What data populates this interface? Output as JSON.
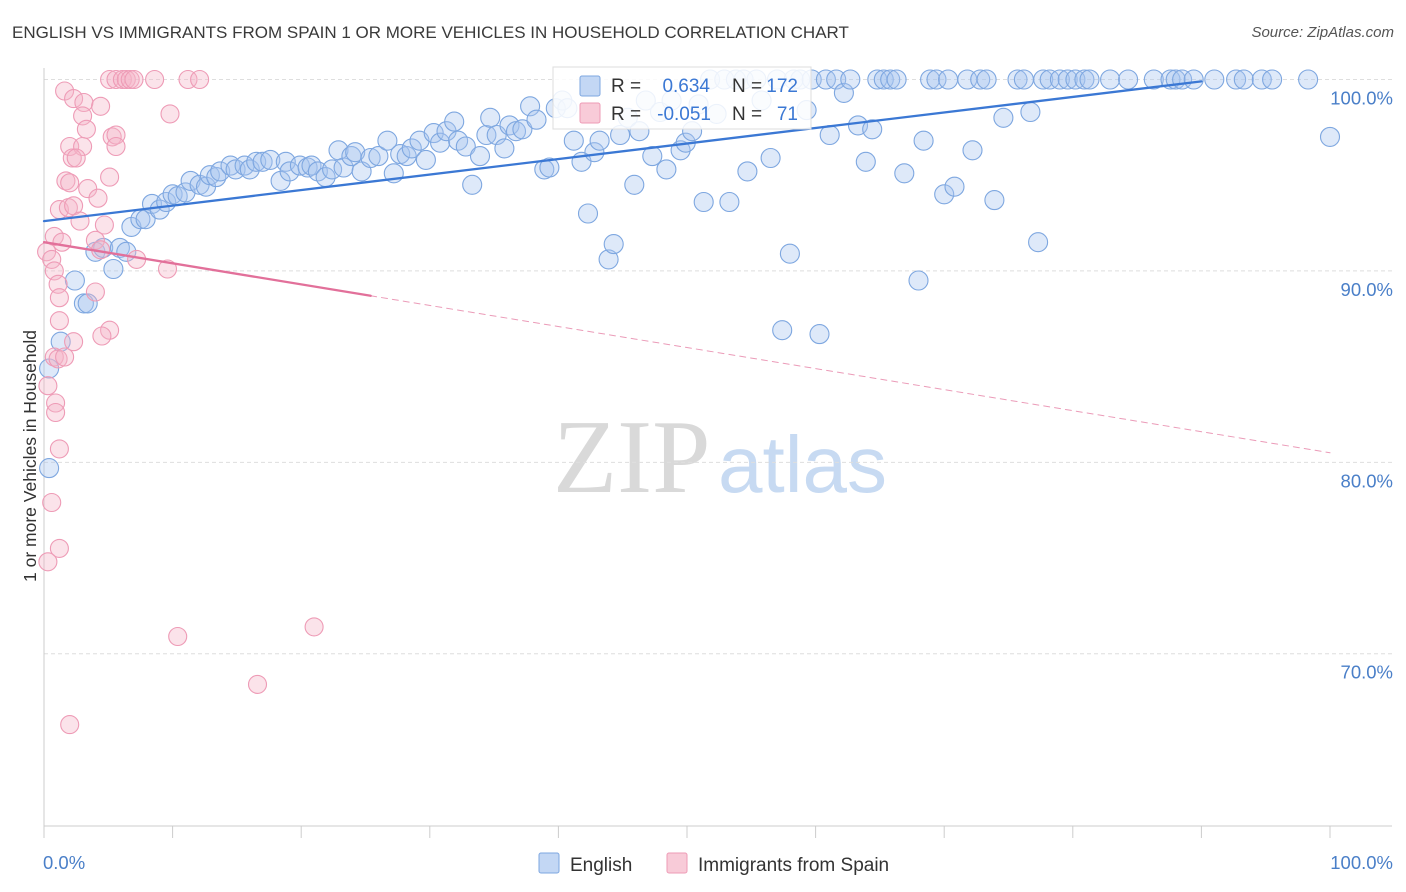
{
  "chart_data": {
    "type": "scatter",
    "title": "ENGLISH VS IMMIGRANTS FROM SPAIN 1 OR MORE VEHICLES IN HOUSEHOLD CORRELATION CHART",
    "source": "Source: ZipAtlas.com",
    "xlabel": "",
    "ylabel": "1 or more Vehicles in Household",
    "xlim": [
      0,
      100
    ],
    "ylim": [
      61,
      100.6
    ],
    "x_ticks": [
      0,
      10,
      20,
      30,
      40,
      50,
      60,
      70,
      80,
      90,
      100
    ],
    "x_tick_labels": [
      "0.0%",
      "100.0%"
    ],
    "y_ticks": [
      {
        "value": 100,
        "label": "100.0%"
      },
      {
        "value": 90,
        "label": "90.0%"
      },
      {
        "value": 80,
        "label": "80.0%"
      },
      {
        "value": 70,
        "label": "70.0%"
      }
    ],
    "grid": true,
    "legend_position": "bottom",
    "stats_labels": {
      "r": "R =",
      "n": "N ="
    },
    "watermark": {
      "zip": "ZIP",
      "atlas": "atlas"
    },
    "series": [
      {
        "name": "English",
        "R": "0.634",
        "N": "172",
        "marker_fill": "#a9c6ef",
        "marker_edge": "#7ea7e0",
        "trend_color": "#3b78d4",
        "trend_segments": [
          {
            "dashed": false,
            "from": [
              0,
              92.6
            ],
            "to": [
              90,
              99.9
            ]
          }
        ],
        "points": [
          [
            0.4,
            84.9
          ],
          [
            0.4,
            79.7
          ],
          [
            1.3,
            86.3
          ],
          [
            2.4,
            89.5
          ],
          [
            3.1,
            88.3
          ],
          [
            3.4,
            88.3
          ],
          [
            4.0,
            91.0
          ],
          [
            4.6,
            91.2
          ],
          [
            5.4,
            90.1
          ],
          [
            5.9,
            91.2
          ],
          [
            6.4,
            91.0
          ],
          [
            6.8,
            92.3
          ],
          [
            7.5,
            92.7
          ],
          [
            7.9,
            92.7
          ],
          [
            8.4,
            93.5
          ],
          [
            9.0,
            93.2
          ],
          [
            9.5,
            93.6
          ],
          [
            10.0,
            94.0
          ],
          [
            10.4,
            93.9
          ],
          [
            11.0,
            94.1
          ],
          [
            11.4,
            94.7
          ],
          [
            12.1,
            94.5
          ],
          [
            12.6,
            94.4
          ],
          [
            12.9,
            95.0
          ],
          [
            13.4,
            94.9
          ],
          [
            13.7,
            95.2
          ],
          [
            14.5,
            95.5
          ],
          [
            14.9,
            95.3
          ],
          [
            15.6,
            95.5
          ],
          [
            16.0,
            95.3
          ],
          [
            16.5,
            95.7
          ],
          [
            17.0,
            95.7
          ],
          [
            17.6,
            95.8
          ],
          [
            18.4,
            94.7
          ],
          [
            18.8,
            95.7
          ],
          [
            19.1,
            95.2
          ],
          [
            19.9,
            95.5
          ],
          [
            20.5,
            95.4
          ],
          [
            20.8,
            95.5
          ],
          [
            21.3,
            95.2
          ],
          [
            21.9,
            94.9
          ],
          [
            22.4,
            95.3
          ],
          [
            22.9,
            96.3
          ],
          [
            23.3,
            95.4
          ],
          [
            23.9,
            96.0
          ],
          [
            24.2,
            96.2
          ],
          [
            24.7,
            95.2
          ],
          [
            25.4,
            95.9
          ],
          [
            26.0,
            96.0
          ],
          [
            26.7,
            96.8
          ],
          [
            27.2,
            95.1
          ],
          [
            27.7,
            96.1
          ],
          [
            28.2,
            96.0
          ],
          [
            28.6,
            96.4
          ],
          [
            29.2,
            96.8
          ],
          [
            29.7,
            95.8
          ],
          [
            30.3,
            97.2
          ],
          [
            30.8,
            96.7
          ],
          [
            31.3,
            97.3
          ],
          [
            31.9,
            97.8
          ],
          [
            32.2,
            96.8
          ],
          [
            32.8,
            96.5
          ],
          [
            33.3,
            94.5
          ],
          [
            33.9,
            96.0
          ],
          [
            34.4,
            97.1
          ],
          [
            34.7,
            98.0
          ],
          [
            35.2,
            97.1
          ],
          [
            35.8,
            96.4
          ],
          [
            36.2,
            97.6
          ],
          [
            36.7,
            97.3
          ],
          [
            37.2,
            97.4
          ],
          [
            37.8,
            98.6
          ],
          [
            38.3,
            97.9
          ],
          [
            38.9,
            95.3
          ],
          [
            39.3,
            95.4
          ],
          [
            39.8,
            98.5
          ],
          [
            40.3,
            98.9
          ],
          [
            40.7,
            98.5
          ],
          [
            41.2,
            96.8
          ],
          [
            41.8,
            95.7
          ],
          [
            42.3,
            93.0
          ],
          [
            42.8,
            96.2
          ],
          [
            43.2,
            96.8
          ],
          [
            43.9,
            90.6
          ],
          [
            44.3,
            91.4
          ],
          [
            44.8,
            97.1
          ],
          [
            45.4,
            98.0
          ],
          [
            45.9,
            94.5
          ],
          [
            46.3,
            97.3
          ],
          [
            46.8,
            98.9
          ],
          [
            47.3,
            96.0
          ],
          [
            47.9,
            98.3
          ],
          [
            48.4,
            95.3
          ],
          [
            48.8,
            98.9
          ],
          [
            49.5,
            96.3
          ],
          [
            49.9,
            96.7
          ],
          [
            50.4,
            97.3
          ],
          [
            50.9,
            98.7
          ],
          [
            51.3,
            93.6
          ],
          [
            51.8,
            100
          ],
          [
            52.3,
            98.2
          ],
          [
            52.9,
            100
          ],
          [
            53.3,
            93.6
          ],
          [
            53.8,
            100
          ],
          [
            54.4,
            100
          ],
          [
            54.7,
            95.2
          ],
          [
            55.4,
            100
          ],
          [
            55.8,
            98.9
          ],
          [
            56.5,
            95.9
          ],
          [
            57.0,
            100
          ],
          [
            57.4,
            86.9
          ],
          [
            58.0,
            90.9
          ],
          [
            58.3,
            100
          ],
          [
            58.8,
            100
          ],
          [
            59.3,
            98.4
          ],
          [
            59.7,
            100
          ],
          [
            60.3,
            86.7
          ],
          [
            60.8,
            100
          ],
          [
            61.1,
            97.1
          ],
          [
            61.6,
            100
          ],
          [
            62.2,
            99.3
          ],
          [
            62.7,
            100
          ],
          [
            63.3,
            97.6
          ],
          [
            63.9,
            95.7
          ],
          [
            64.4,
            97.4
          ],
          [
            64.8,
            100
          ],
          [
            65.3,
            100
          ],
          [
            65.8,
            100
          ],
          [
            66.3,
            100
          ],
          [
            66.9,
            95.1
          ],
          [
            68.0,
            89.5
          ],
          [
            68.4,
            96.8
          ],
          [
            68.9,
            100
          ],
          [
            69.4,
            100
          ],
          [
            70.0,
            94.0
          ],
          [
            70.3,
            100
          ],
          [
            70.8,
            94.4
          ],
          [
            71.8,
            100
          ],
          [
            72.2,
            96.3
          ],
          [
            72.8,
            100
          ],
          [
            73.3,
            100
          ],
          [
            73.9,
            93.7
          ],
          [
            74.6,
            98.0
          ],
          [
            75.7,
            100
          ],
          [
            76.2,
            100
          ],
          [
            76.7,
            98.3
          ],
          [
            77.3,
            91.5
          ],
          [
            77.7,
            100
          ],
          [
            78.2,
            100
          ],
          [
            79.0,
            100
          ],
          [
            79.6,
            100
          ],
          [
            80.2,
            100
          ],
          [
            80.9,
            100
          ],
          [
            81.3,
            100
          ],
          [
            82.9,
            100
          ],
          [
            84.3,
            100
          ],
          [
            86.3,
            100
          ],
          [
            87.6,
            100
          ],
          [
            88.0,
            100
          ],
          [
            88.5,
            100
          ],
          [
            89.4,
            100
          ],
          [
            91.0,
            100
          ],
          [
            92.7,
            100
          ],
          [
            93.3,
            100
          ],
          [
            94.7,
            100
          ],
          [
            95.5,
            100
          ],
          [
            98.3,
            100
          ],
          [
            100,
            97.0
          ]
        ]
      },
      {
        "name": "Immigrants from Spain",
        "R": "-0.051",
        "N": "71",
        "marker_fill": "#f5b5c8",
        "marker_edge": "#ee9bb6",
        "trend_color": "#e2709a",
        "trend_segments": [
          {
            "dashed": false,
            "from": [
              0,
              91.5
            ],
            "to": [
              25.4,
              88.7
            ]
          },
          {
            "dashed": true,
            "from": [
              25.4,
              88.7
            ],
            "to": [
              100,
              80.5
            ]
          }
        ],
        "points": [
          [
            0.3,
            74.8
          ],
          [
            1.6,
            99.4
          ],
          [
            2.3,
            99.0
          ],
          [
            3.1,
            98.8
          ],
          [
            4.4,
            98.6
          ],
          [
            3.0,
            98.1
          ],
          [
            3.3,
            97.4
          ],
          [
            5.3,
            97.0
          ],
          [
            5.6,
            97.1
          ],
          [
            2.0,
            96.5
          ],
          [
            3.0,
            96.5
          ],
          [
            5.6,
            96.5
          ],
          [
            2.2,
            95.9
          ],
          [
            2.5,
            95.9
          ],
          [
            1.7,
            94.7
          ],
          [
            2.0,
            94.6
          ],
          [
            5.1,
            94.9
          ],
          [
            3.4,
            94.3
          ],
          [
            1.2,
            93.2
          ],
          [
            1.9,
            93.3
          ],
          [
            4.2,
            93.8
          ],
          [
            2.3,
            93.4
          ],
          [
            2.8,
            92.6
          ],
          [
            4.7,
            92.4
          ],
          [
            0.8,
            91.8
          ],
          [
            1.4,
            91.5
          ],
          [
            4.0,
            91.6
          ],
          [
            4.4,
            91.1
          ],
          [
            0.2,
            91.0
          ],
          [
            0.6,
            90.6
          ],
          [
            7.2,
            90.6
          ],
          [
            0.8,
            90.0
          ],
          [
            9.6,
            90.1
          ],
          [
            1.1,
            89.3
          ],
          [
            1.2,
            88.6
          ],
          [
            4.0,
            88.9
          ],
          [
            1.2,
            87.4
          ],
          [
            5.1,
            86.9
          ],
          [
            4.5,
            86.6
          ],
          [
            2.3,
            86.3
          ],
          [
            0.8,
            85.5
          ],
          [
            1.1,
            85.4
          ],
          [
            1.6,
            85.5
          ],
          [
            0.3,
            84.0
          ],
          [
            0.9,
            83.1
          ],
          [
            0.9,
            82.6
          ],
          [
            1.2,
            80.7
          ],
          [
            0.6,
            77.9
          ],
          [
            1.2,
            75.5
          ],
          [
            10.4,
            70.9
          ],
          [
            21.0,
            71.4
          ],
          [
            16.6,
            68.4
          ],
          [
            2.0,
            66.3
          ],
          [
            5.1,
            100
          ],
          [
            5.6,
            100
          ],
          [
            6.1,
            100
          ],
          [
            6.4,
            100
          ],
          [
            6.7,
            100
          ],
          [
            7.0,
            100
          ],
          [
            8.6,
            100
          ],
          [
            11.2,
            100
          ],
          [
            12.1,
            100
          ],
          [
            9.8,
            98.2
          ]
        ]
      }
    ]
  }
}
